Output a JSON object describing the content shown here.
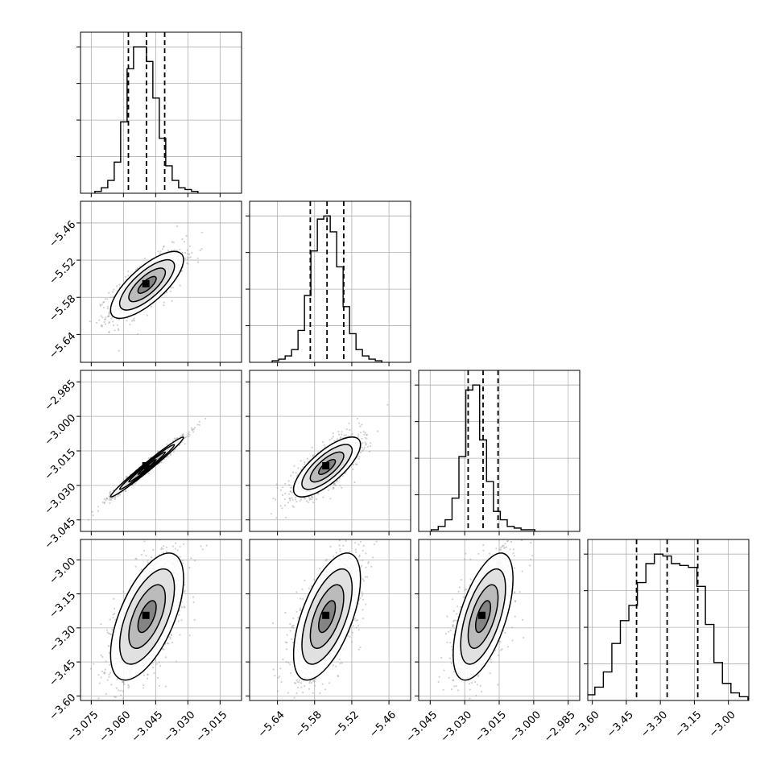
{
  "chart_data": {
    "type": "corner",
    "parameters": 4,
    "grid": true,
    "quantile_lines": "dashed",
    "panels": [
      {
        "row": 0,
        "col": 0,
        "type": "histogram",
        "param": 0,
        "xlim": [
          -3.08,
          -3.005
        ],
        "bin_width": 0.003,
        "counts": [
          1,
          3,
          7,
          17,
          39,
          68,
          80,
          80,
          72,
          52,
          30,
          15,
          7,
          3,
          2,
          1
        ],
        "quantiles": [
          -3.0577,
          -3.0493,
          -3.0408
        ]
      },
      {
        "row": 1,
        "col": 0,
        "type": "density",
        "xparam": 0,
        "yparam": 1,
        "xlim": [
          -3.08,
          -3.005
        ],
        "ylim": [
          -5.685,
          -5.425
        ],
        "center": [
          -3.049,
          -5.56
        ],
        "sigma": [
          0.0085,
          0.027
        ],
        "rho": 0.75
      },
      {
        "row": 1,
        "col": 1,
        "type": "histogram",
        "param": 1,
        "xlim": [
          -5.685,
          -5.425
        ],
        "bin_width": 0.0104,
        "counts": [
          1,
          2,
          4,
          8,
          20,
          42,
          70,
          90,
          92,
          82,
          60,
          35,
          18,
          8,
          4,
          2,
          1
        ],
        "quantiles": [
          -5.587,
          -5.56,
          -5.533
        ]
      },
      {
        "row": 2,
        "col": 0,
        "type": "density",
        "xparam": 0,
        "yparam": 2,
        "xlim": [
          -3.08,
          -3.005
        ],
        "ylim": [
          -3.05,
          -2.98
        ],
        "center": [
          -3.049,
          -3.022
        ],
        "sigma": [
          0.0085,
          0.0065
        ],
        "rho": 0.985
      },
      {
        "row": 2,
        "col": 1,
        "type": "density",
        "xparam": 1,
        "yparam": 2,
        "xlim": [
          -5.685,
          -5.425
        ],
        "ylim": [
          -3.05,
          -2.98
        ],
        "center": [
          -5.56,
          -3.022
        ],
        "sigma": [
          0.027,
          0.0065
        ],
        "rho": 0.75
      },
      {
        "row": 2,
        "col": 2,
        "type": "histogram",
        "param": 2,
        "xlim": [
          -3.05,
          -2.98
        ],
        "bin_width": 0.003,
        "counts": [
          1,
          3,
          7,
          20,
          45,
          85,
          88,
          55,
          30,
          12,
          7,
          3,
          2,
          1,
          1
        ],
        "quantiles": [
          -3.0285,
          -3.022,
          -3.0155
        ]
      },
      {
        "row": 3,
        "col": 0,
        "type": "density",
        "xparam": 0,
        "yparam": 3,
        "xlim": [
          -3.08,
          -3.005
        ],
        "ylim": [
          -3.62,
          -2.91
        ],
        "center": [
          -3.049,
          -3.25
        ],
        "sigma": [
          0.0085,
          0.14
        ],
        "rho": 0.6
      },
      {
        "row": 3,
        "col": 1,
        "type": "density",
        "xparam": 1,
        "yparam": 3,
        "xlim": [
          -5.685,
          -5.425
        ],
        "ylim": [
          -3.62,
          -2.91
        ],
        "center": [
          -5.56,
          -3.25
        ],
        "sigma": [
          0.027,
          0.14
        ],
        "rho": 0.6
      },
      {
        "row": 3,
        "col": 2,
        "type": "density",
        "xparam": 2,
        "yparam": 3,
        "xlim": [
          -3.05,
          -2.98
        ],
        "ylim": [
          -3.62,
          -2.91
        ],
        "center": [
          -3.022,
          -3.25
        ],
        "sigma": [
          0.0065,
          0.14
        ],
        "rho": 0.6
      },
      {
        "row": 3,
        "col": 3,
        "type": "histogram",
        "param": 3,
        "xlim": [
          -3.62,
          -2.91
        ],
        "bin_width": 0.0375,
        "counts": [
          3,
          7,
          15,
          30,
          42,
          50,
          62,
          72,
          77,
          76,
          72,
          71,
          70,
          60,
          40,
          20,
          9,
          4,
          2
        ],
        "quantiles": [
          -3.405,
          -3.27,
          -3.135
        ]
      }
    ],
    "axes": {
      "x_ticks": [
        [
          "−3.075",
          "−3.060",
          "−3.045",
          "−3.030",
          "−3.015"
        ],
        [
          "−5.64",
          "−5.58",
          "−5.52",
          "−5.46"
        ],
        [
          "−3.045",
          "−3.030",
          "−3.015",
          "−3.000",
          "−2.985"
        ],
        [
          "−3.60",
          "−3.45",
          "−3.30",
          "−3.15",
          "−3.00"
        ]
      ],
      "x_tick_values": [
        [
          -3.075,
          -3.06,
          -3.045,
          -3.03,
          -3.015
        ],
        [
          -5.64,
          -5.58,
          -5.52,
          -5.46
        ],
        [
          -3.045,
          -3.03,
          -3.015,
          -3.0,
          -2.985
        ],
        [
          -3.6,
          -3.45,
          -3.3,
          -3.15,
          -3.0
        ]
      ],
      "y_ticks": [
        [],
        [
          "−5.46",
          "−5.52",
          "−5.58",
          "−5.64"
        ],
        [
          "−2.985",
          "−3.000",
          "−3.015",
          "−3.030",
          "−3.045"
        ],
        [
          "−3.00",
          "−3.15",
          "−3.30",
          "−3.45",
          "−3.60"
        ]
      ],
      "y_tick_values": [
        [],
        [
          -5.46,
          -5.52,
          -5.58,
          -5.64
        ],
        [
          -2.985,
          -3.0,
          -3.015,
          -3.03,
          -3.045
        ],
        [
          -3.0,
          -3.15,
          -3.3,
          -3.45,
          -3.6
        ]
      ]
    }
  }
}
